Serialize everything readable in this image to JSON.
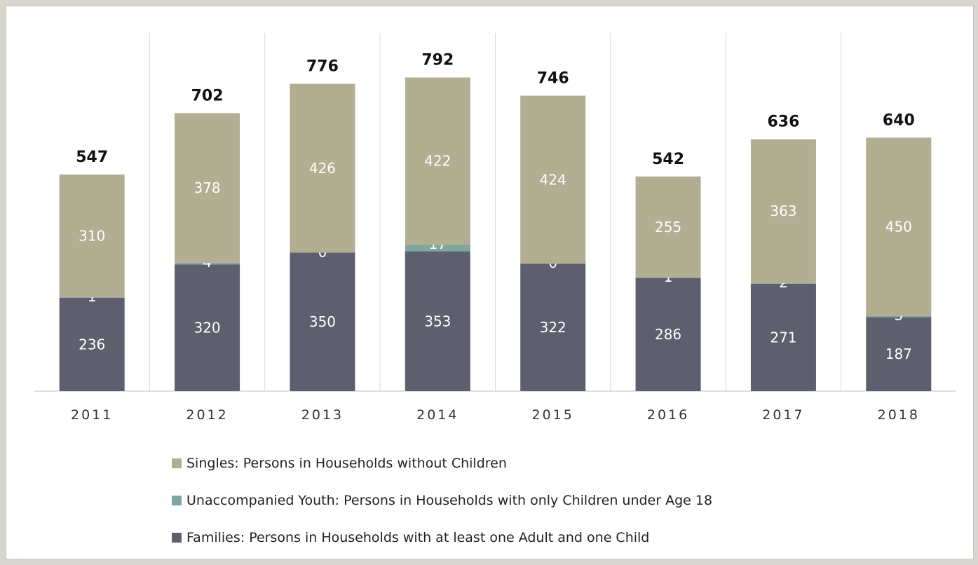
{
  "chart_data": {
    "type": "bar",
    "stacked": true,
    "categories": [
      "2011",
      "2012",
      "2013",
      "2014",
      "2015",
      "2016",
      "2017",
      "2018"
    ],
    "series": [
      {
        "name": "Families: Persons in Households with at least one Adult and one Child",
        "color": "#5d5f6e",
        "values": [
          236,
          320,
          350,
          353,
          322,
          286,
          271,
          187
        ]
      },
      {
        "name": "Unaccompanied Youth: Persons in Households with only Children under Age 18",
        "color": "#7fa6a0",
        "values": [
          1,
          4,
          0,
          17,
          0,
          1,
          2,
          3
        ]
      },
      {
        "name": "Singles: Persons in Households without Children",
        "color": "#b2ae92",
        "values": [
          310,
          378,
          426,
          422,
          424,
          255,
          363,
          450
        ]
      }
    ],
    "totals": [
      547,
      702,
      776,
      792,
      746,
      542,
      636,
      640
    ],
    "grid": "vertical separators",
    "legend_position": "bottom"
  },
  "legend": [
    {
      "label": "Singles: Persons in Households without Children",
      "color": "#b2ae92"
    },
    {
      "label": "Unaccompanied Youth: Persons in Households with only Children under Age 18",
      "color": "#7fa6a0"
    },
    {
      "label": "Families: Persons in Households with at least one Adult and one Child",
      "color": "#5d5f6e"
    }
  ]
}
